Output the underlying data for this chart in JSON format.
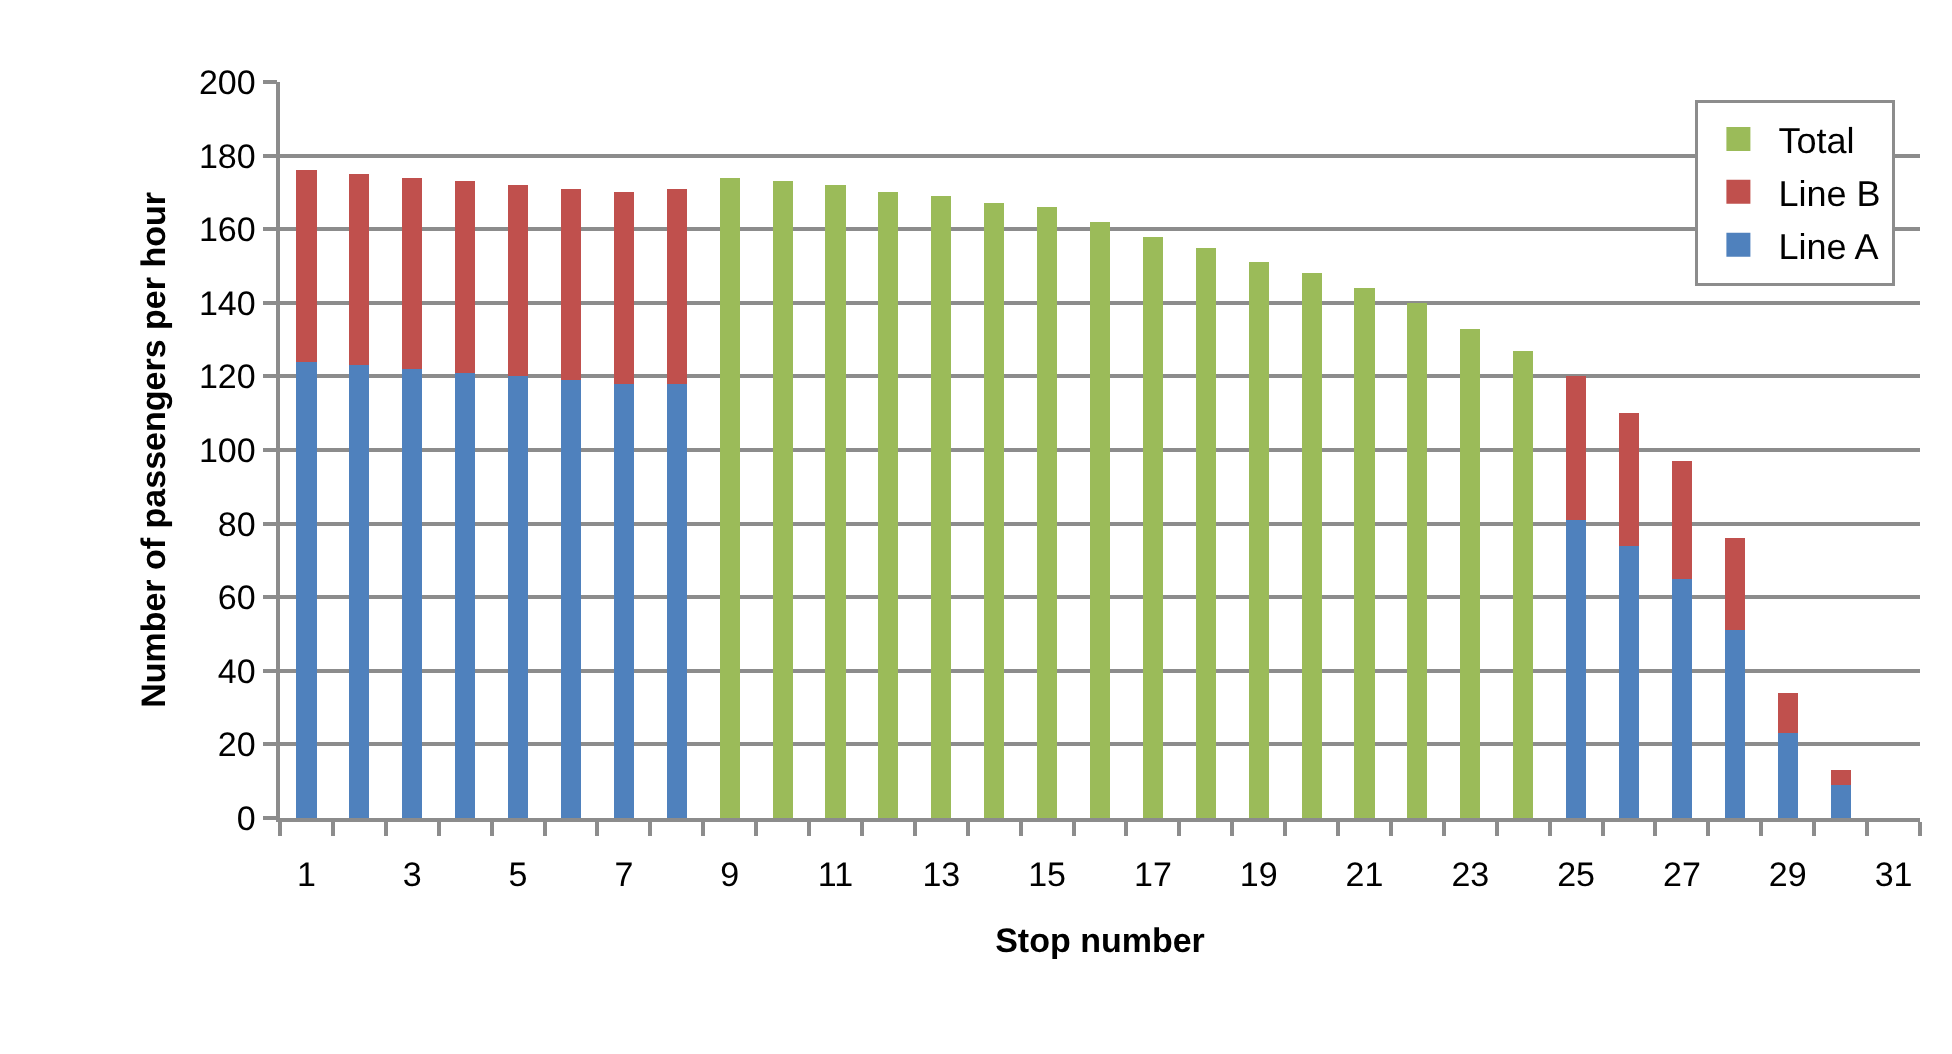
{
  "chart_data": {
    "type": "bar",
    "stacked": true,
    "xlabel": "Stop number",
    "ylabel": "Number of passengers per hour",
    "x": [
      1,
      2,
      3,
      4,
      5,
      6,
      7,
      8,
      9,
      10,
      11,
      12,
      13,
      14,
      15,
      16,
      17,
      18,
      19,
      20,
      21,
      22,
      23,
      24,
      25,
      26,
      27,
      28,
      29,
      30
    ],
    "series": [
      {
        "name": "Line A",
        "color": "#4f81bd",
        "values": [
          124,
          123,
          122,
          121,
          120,
          119,
          118,
          118,
          null,
          null,
          null,
          null,
          null,
          null,
          null,
          null,
          null,
          null,
          null,
          null,
          null,
          null,
          null,
          null,
          81,
          74,
          65,
          51,
          23,
          9
        ]
      },
      {
        "name": "Line B",
        "color": "#c0504d",
        "values": [
          52,
          52,
          52,
          52,
          52,
          52,
          52,
          53,
          null,
          null,
          null,
          null,
          null,
          null,
          null,
          null,
          null,
          null,
          null,
          null,
          null,
          null,
          null,
          null,
          39,
          36,
          32,
          25,
          11,
          4
        ]
      },
      {
        "name": "Total",
        "color": "#9bbb59",
        "values": [
          null,
          null,
          null,
          null,
          null,
          null,
          null,
          null,
          174,
          173,
          172,
          170,
          169,
          167,
          166,
          162,
          158,
          155,
          151,
          148,
          144,
          140,
          133,
          127,
          null,
          null,
          null,
          null,
          null,
          null
        ]
      }
    ],
    "xlim": [
      0.5,
      31.5
    ],
    "xticks": [
      1,
      3,
      5,
      7,
      9,
      11,
      13,
      15,
      17,
      19,
      21,
      23,
      25,
      27,
      29,
      31,
      {
        "value": 0.5,
        "label": null
      },
      {
        "value": 1.5,
        "label": null
      },
      {
        "value": 2.5,
        "label": null
      },
      {
        "value": 3.5,
        "label": null
      },
      {
        "value": 4.5,
        "label": null
      },
      {
        "value": 5.5,
        "label": null
      },
      {
        "value": 6.5,
        "label": null
      },
      {
        "value": 7.5,
        "label": null
      },
      {
        "value": 8.5,
        "label": null
      },
      {
        "value": 9.5,
        "label": null
      },
      {
        "value": 10.5,
        "label": null
      },
      {
        "value": 11.5,
        "label": null
      },
      {
        "value": 12.5,
        "label": null
      },
      {
        "value": 13.5,
        "label": null
      },
      {
        "value": 14.5,
        "label": null
      },
      {
        "value": 15.5,
        "label": null
      },
      {
        "value": 16.5,
        "label": null
      },
      {
        "value": 17.5,
        "label": null
      },
      {
        "value": 18.5,
        "label": null
      },
      {
        "value": 19.5,
        "label": null
      },
      {
        "value": 20.5,
        "label": null
      },
      {
        "value": 21.5,
        "label": null
      },
      {
        "value": 22.5,
        "label": null
      },
      {
        "value": 23.5,
        "label": null
      },
      {
        "value": 24.5,
        "label": null
      },
      {
        "value": 25.5,
        "label": null
      },
      {
        "value": 26.5,
        "label": null
      },
      {
        "value": 27.5,
        "label": null
      },
      {
        "value": 28.5,
        "label": null
      },
      {
        "value": 29.5,
        "label": null
      },
      {
        "value": 30.5,
        "label": null
      },
      {
        "value": 31.5,
        "label": null
      }
    ],
    "ylim": [
      0,
      200
    ],
    "yticks": [
      0,
      20,
      40,
      60,
      80,
      100,
      120,
      140,
      160,
      180,
      200
    ],
    "grid": "y",
    "legend": "top right"
  }
}
